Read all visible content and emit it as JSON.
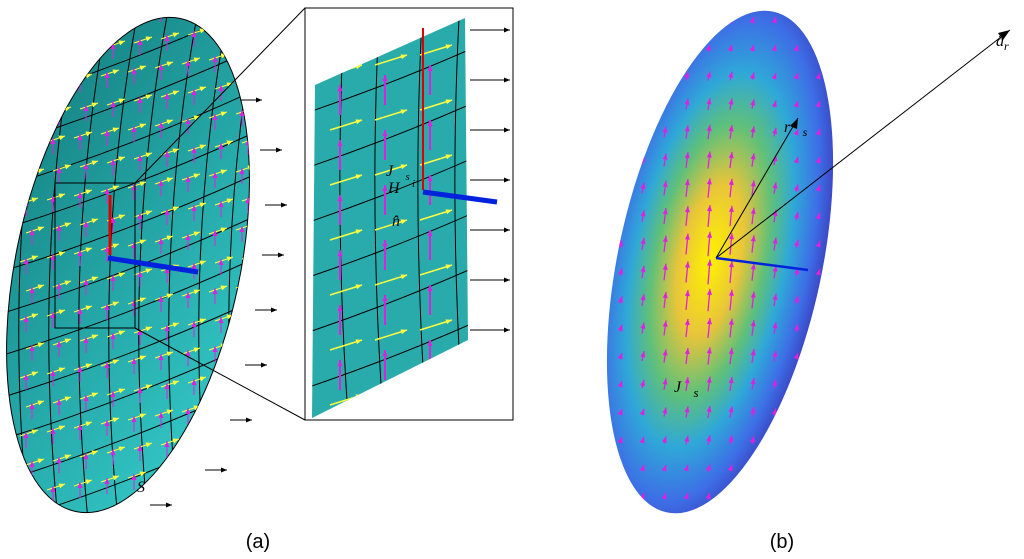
{
  "panel_a": {
    "label": "(a)",
    "surface_label": "S",
    "zoom_labels": [
      {
        "base": "J⃗",
        "sub": "s"
      },
      {
        "base": "H⃗",
        "sup": "i"
      },
      {
        "base": "n̂"
      }
    ]
  },
  "panel_b": {
    "label": "(b)",
    "labels": [
      {
        "base": "r⃗",
        "sub": "s"
      },
      {
        "base": "â",
        "sub": "r"
      },
      {
        "base": "J⃗",
        "sub": "s"
      }
    ]
  }
}
